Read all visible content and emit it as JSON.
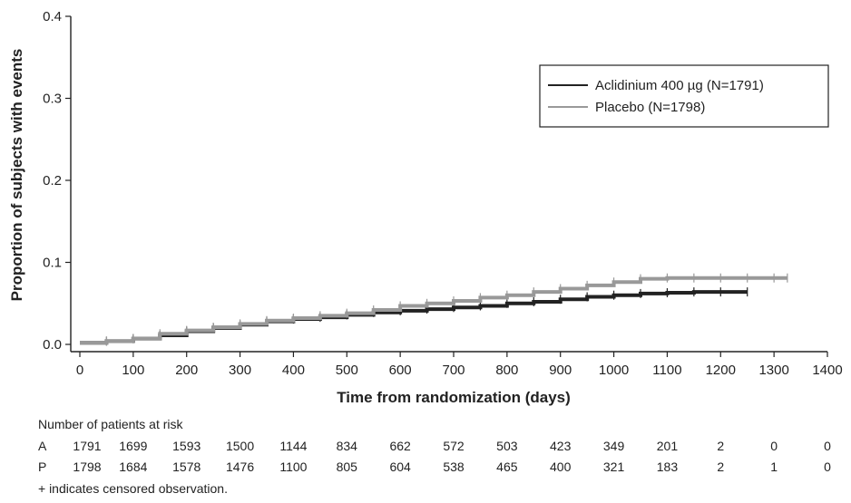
{
  "chart_data": {
    "type": "line",
    "xlabel": "Time from randomization (days)",
    "ylabel": "Proportion of subjects with events",
    "xlim": [
      0,
      1400
    ],
    "ylim": [
      0,
      0.4
    ],
    "x_ticks": [
      0,
      100,
      200,
      300,
      400,
      500,
      600,
      700,
      800,
      900,
      1000,
      1100,
      1200,
      1300,
      1400
    ],
    "y_ticks": [
      "0.0",
      "0.1",
      "0.2",
      "0.3",
      "0.4"
    ],
    "y_tick_values": [
      0,
      0.1,
      0.2,
      0.3,
      0.4
    ],
    "grid": false,
    "legend_position": "top-right",
    "series": [
      {
        "name": "Aclidinium 400 µg (N=1791)",
        "color": "#222222",
        "x": [
          0,
          50,
          100,
          150,
          200,
          250,
          300,
          350,
          400,
          450,
          500,
          550,
          600,
          650,
          700,
          750,
          800,
          850,
          900,
          950,
          1000,
          1050,
          1100,
          1150,
          1200,
          1250
        ],
        "y": [
          0.002,
          0.004,
          0.007,
          0.011,
          0.016,
          0.02,
          0.024,
          0.028,
          0.031,
          0.033,
          0.036,
          0.039,
          0.041,
          0.043,
          0.045,
          0.047,
          0.05,
          0.052,
          0.055,
          0.058,
          0.06,
          0.062,
          0.063,
          0.064,
          0.064,
          0.064
        ]
      },
      {
        "name": "Placebo (N=1798)",
        "color": "#999999",
        "x": [
          0,
          50,
          100,
          150,
          200,
          250,
          300,
          350,
          400,
          450,
          500,
          550,
          600,
          650,
          700,
          750,
          800,
          850,
          900,
          950,
          1000,
          1050,
          1100,
          1150,
          1200,
          1250,
          1300,
          1325
        ],
        "y": [
          0.002,
          0.004,
          0.007,
          0.013,
          0.017,
          0.021,
          0.025,
          0.029,
          0.032,
          0.035,
          0.038,
          0.042,
          0.047,
          0.05,
          0.053,
          0.057,
          0.06,
          0.064,
          0.068,
          0.072,
          0.076,
          0.08,
          0.081,
          0.081,
          0.081,
          0.081,
          0.081,
          0.081
        ]
      }
    ]
  },
  "risk_table": {
    "title": "Number of patients at risk",
    "rows": [
      {
        "code": "A",
        "values": [
          "1791",
          "1699",
          "1593",
          "1500",
          "1144",
          "834",
          "662",
          "572",
          "503",
          "423",
          "349",
          "201",
          "2",
          "0",
          "0"
        ]
      },
      {
        "code": "P",
        "values": [
          "1798",
          "1684",
          "1578",
          "1476",
          "1100",
          "805",
          "604",
          "538",
          "465",
          "400",
          "321",
          "183",
          "2",
          "1",
          "0"
        ]
      }
    ],
    "note": "+ indicates censored observation."
  }
}
